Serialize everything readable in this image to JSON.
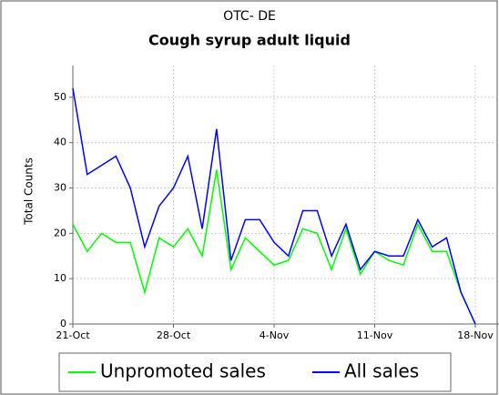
{
  "chart_data": {
    "type": "line",
    "title": "OTC- DE",
    "subtitle": "Cough syrup adult liquid",
    "y_label": "Total Counts",
    "categories": [
      "21-Oct",
      null,
      null,
      null,
      null,
      null,
      null,
      "28-Oct",
      null,
      null,
      null,
      null,
      null,
      null,
      "4-Nov",
      null,
      null,
      null,
      null,
      null,
      null,
      "11-Nov",
      null,
      null,
      null,
      null,
      null,
      null,
      "18-Nov"
    ],
    "series": [
      {
        "name": "Unpromoted sales",
        "color": "#00ff00",
        "values": [
          22,
          16,
          20,
          18,
          18,
          7,
          19,
          17,
          21,
          15,
          34,
          12,
          19,
          16,
          13,
          14,
          21,
          20,
          12,
          21,
          11,
          16,
          14,
          13,
          22,
          16,
          16,
          7,
          0
        ]
      },
      {
        "name": "All sales",
        "color": "#0000ff",
        "values": [
          52,
          33,
          35,
          37,
          30,
          17,
          26,
          30,
          37,
          21,
          43,
          14,
          23,
          23,
          18,
          15,
          25,
          25,
          15,
          22,
          12,
          16,
          15,
          15,
          23,
          17,
          19,
          7,
          0
        ]
      }
    ],
    "ylim": [
      0,
      57
    ],
    "yticks": [
      0,
      10,
      20,
      30,
      40,
      50
    ],
    "grid": true,
    "legend": "bottom"
  }
}
